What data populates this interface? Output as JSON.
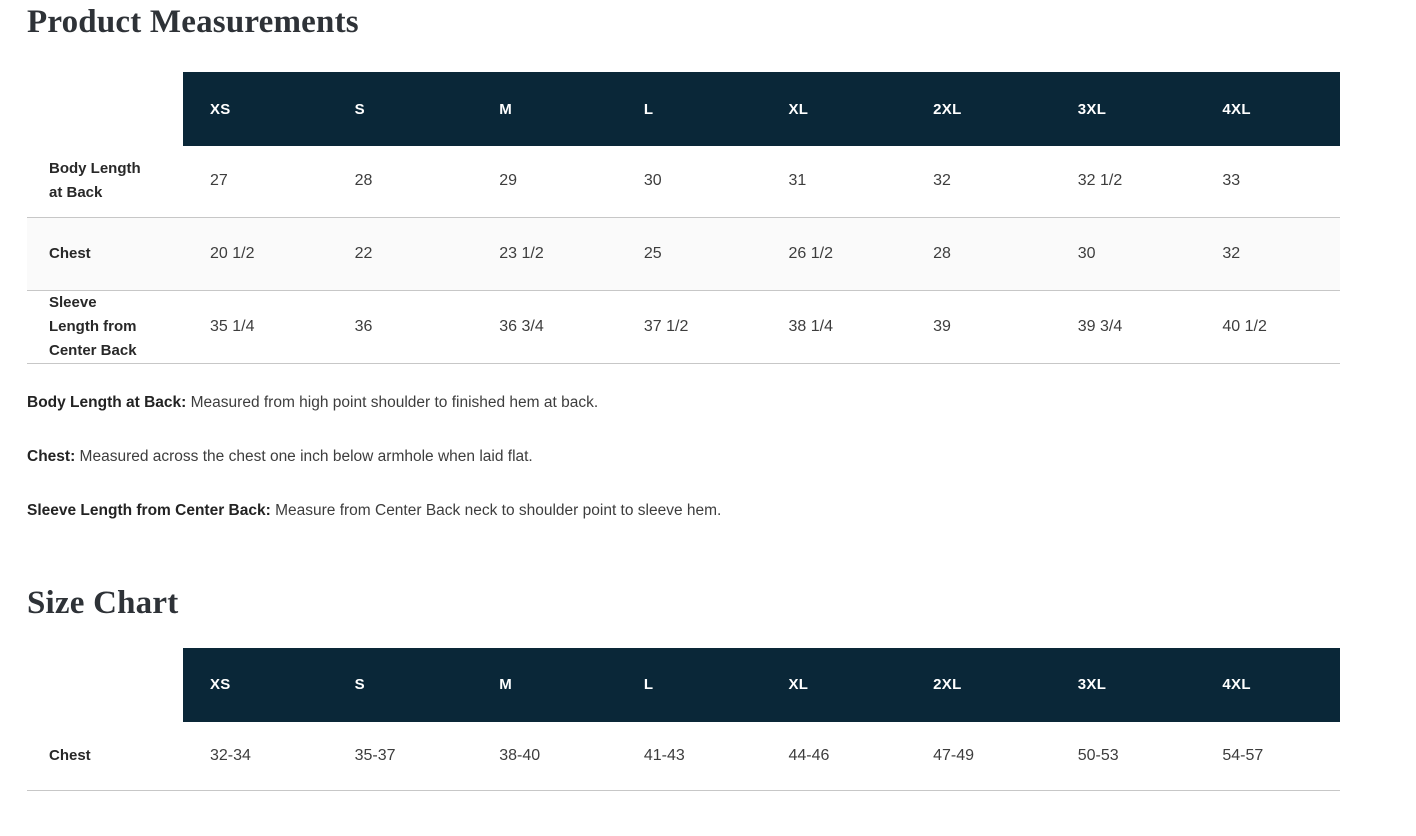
{
  "titles": {
    "product_measurements": "Product Measurements",
    "size_chart": "Size Chart"
  },
  "sizes": [
    "XS",
    "S",
    "M",
    "L",
    "XL",
    "2XL",
    "3XL",
    "4XL"
  ],
  "product_measurements": {
    "rows": [
      {
        "label_lines": [
          "Body Length",
          "at Back"
        ],
        "values": [
          "27",
          "28",
          "29",
          "30",
          "31",
          "32",
          "32 1/2",
          "33"
        ]
      },
      {
        "label_lines": [
          "Chest"
        ],
        "values": [
          "20 1/2",
          "22",
          "23 1/2",
          "25",
          "26 1/2",
          "28",
          "30",
          "32"
        ]
      },
      {
        "label_lines": [
          "Sleeve",
          "Length from",
          "Center Back"
        ],
        "values": [
          "35 1/4",
          "36",
          "36 3/4",
          "37 1/2",
          "38 1/4",
          "39",
          "39 3/4",
          "40 1/2"
        ]
      }
    ]
  },
  "definitions": [
    {
      "term": "Body Length at Back:",
      "text": "Measured from high point shoulder to finished hem at back."
    },
    {
      "term": "Chest:",
      "text": "Measured across the chest one inch below armhole when laid flat."
    },
    {
      "term": "Sleeve Length from Center Back:",
      "text": "Measure from Center Back neck to shoulder point to sleeve hem."
    }
  ],
  "size_chart": {
    "rows": [
      {
        "label_lines": [
          "Chest"
        ],
        "values": [
          "32-34",
          "35-37",
          "38-40",
          "41-43",
          "44-46",
          "47-49",
          "50-53",
          "54-57"
        ]
      }
    ]
  },
  "colors": {
    "header_bg": "#0a2738",
    "header_text": "#ffffff",
    "stripe_bg": "#fafafa",
    "row_border": "#c7c7c7",
    "title_text": "#2e3237",
    "body_text": "#3d3d3d"
  }
}
